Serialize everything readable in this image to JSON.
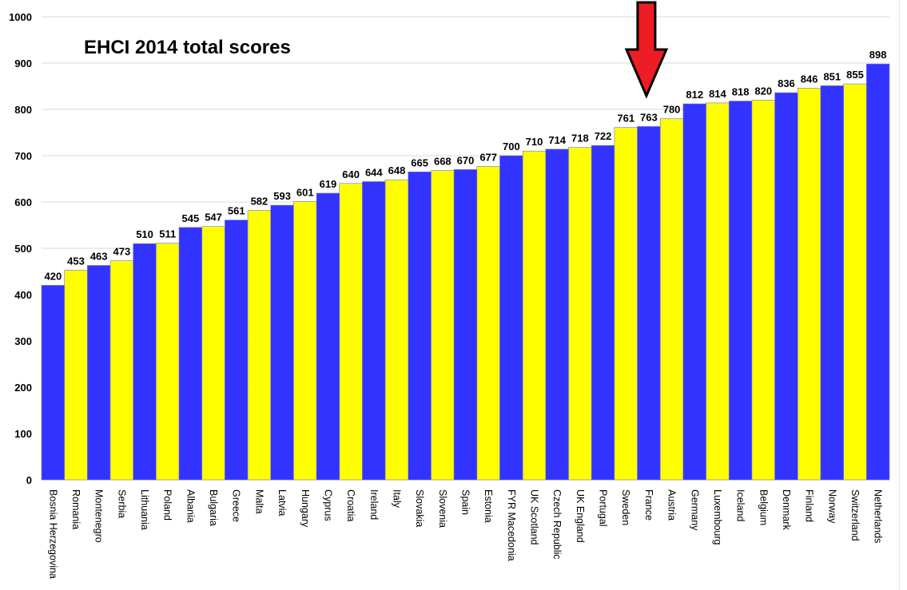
{
  "chart_data": {
    "type": "bar",
    "title": "EHCI 2014 total scores",
    "xlabel": "",
    "ylabel": "",
    "ylim": [
      0,
      1000
    ],
    "yticks": [
      0,
      100,
      200,
      300,
      400,
      500,
      600,
      700,
      800,
      900,
      1000
    ],
    "grid": true,
    "legend": null,
    "categories": [
      "Bosnia Herzegovina",
      "Romania",
      "Montenegro",
      "Serbia",
      "Lithuania",
      "Poland",
      "Albania",
      "Bulgaria",
      "Greece",
      "Malta",
      "Latvia",
      "Hungary",
      "Cyprus",
      "Croatia",
      "Ireland",
      "Italy",
      "Slovakia",
      "Slovenia",
      "Spain",
      "Estonia",
      "FYR Macedonia",
      "UK Scotland",
      "Czech Republic",
      "UK England",
      "Portugal",
      "Sweden",
      "France",
      "Austria",
      "Germany",
      "Luxembourg",
      "Iceland",
      "Belgium",
      "Denmark",
      "Finland",
      "Norway",
      "Switzerland",
      "Netherlands"
    ],
    "values": [
      420,
      453,
      463,
      473,
      510,
      511,
      545,
      547,
      561,
      582,
      593,
      601,
      619,
      640,
      644,
      648,
      665,
      668,
      670,
      677,
      700,
      710,
      714,
      718,
      722,
      761,
      763,
      780,
      812,
      814,
      818,
      820,
      836,
      846,
      851,
      855,
      898
    ],
    "bar_colors": [
      "#3333ff",
      "#ffff00"
    ],
    "annotations": [
      {
        "type": "arrow",
        "direction": "down",
        "color": "#ee1c24",
        "target": "France"
      }
    ]
  },
  "colors": {
    "blue_bar": "#3333ff",
    "yellow_bar": "#ffff00",
    "arrow_fill": "#ee1c24",
    "grid": "#d9d9d9",
    "text": "#000000"
  }
}
